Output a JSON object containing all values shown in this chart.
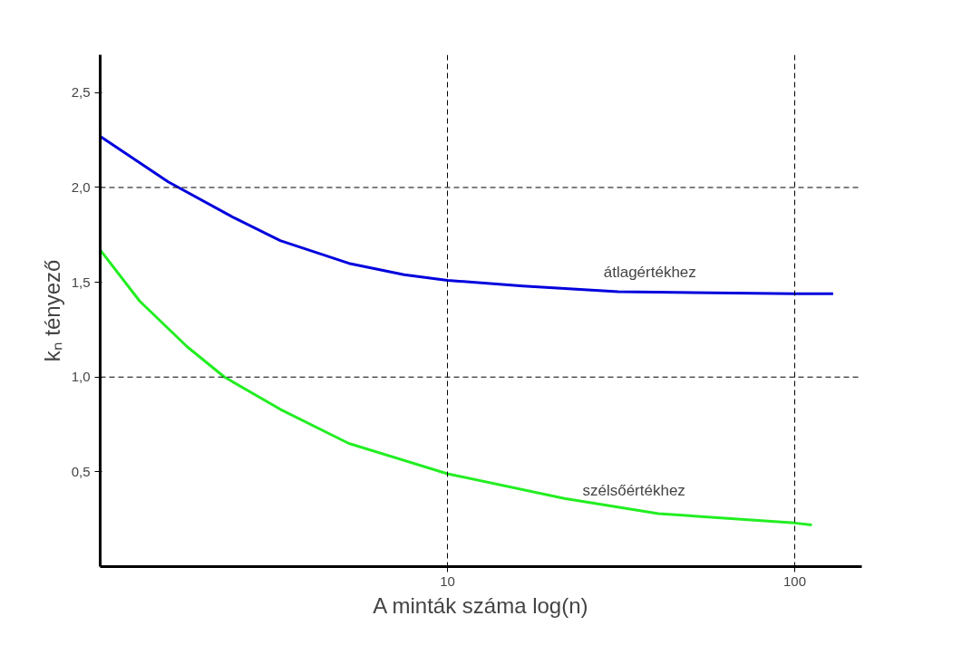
{
  "chart_data": {
    "type": "line",
    "xlabel": "A minták száma log(n)",
    "ylabel": "kₙ tényező",
    "log": "x",
    "xlim": [
      1,
      156
    ],
    "ylim": [
      0,
      2.7
    ],
    "xticks": [
      10,
      100
    ],
    "yticks": [
      {
        "value": 0.5,
        "label": "0,5"
      },
      {
        "value": 1.0,
        "label": "1,0"
      },
      {
        "value": 1.5,
        "label": "1,5"
      },
      {
        "value": 2.0,
        "label": "2,0"
      },
      {
        "value": 2.5,
        "label": "2,5"
      }
    ],
    "grid": false,
    "legend": false,
    "line_style": "solid",
    "marker": "none",
    "series": [
      {
        "name": "átlagértékhez",
        "color": "#0000dd",
        "x": [
          1,
          1.57,
          2.43,
          3.3,
          5.2,
          7.5,
          10,
          16.5,
          31,
          100,
          129
        ],
        "values": [
          2.27,
          2.03,
          1.84,
          1.72,
          1.6,
          1.54,
          1.51,
          1.48,
          1.45,
          1.44,
          1.44
        ]
      },
      {
        "name": "szélsőértékhez",
        "color": "#22ee22",
        "x": [
          1,
          1.3,
          1.78,
          2.28,
          3.3,
          5.2,
          10,
          21.7,
          40.5,
          100,
          112
        ],
        "values": [
          1.67,
          1.4,
          1.16,
          1.0,
          0.83,
          0.65,
          0.49,
          0.36,
          0.28,
          0.23,
          0.22
        ]
      }
    ],
    "ref_lines": [
      {
        "axis": "y",
        "value": 1.0,
        "line_style": "dashed",
        "color": "#000000"
      },
      {
        "axis": "y",
        "value": 2.0,
        "line_style": "dashed",
        "color": "#000000"
      },
      {
        "axis": "x",
        "value": 10,
        "line_style": "dashed",
        "color": "#000000"
      },
      {
        "axis": "x",
        "value": 100,
        "line_style": "dashed",
        "color": "#000000"
      }
    ]
  }
}
